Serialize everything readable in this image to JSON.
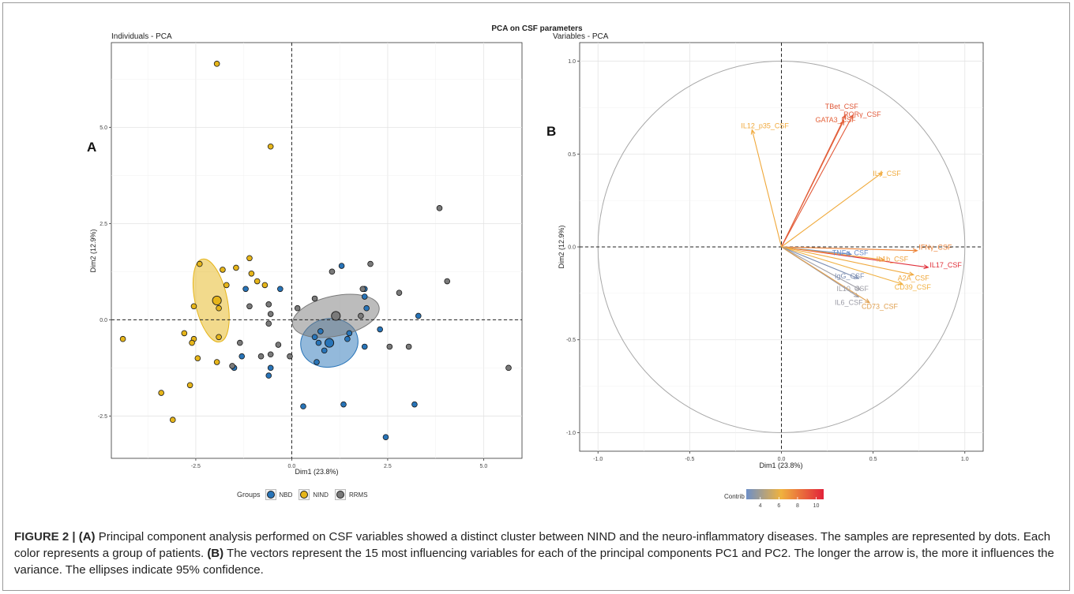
{
  "figure": {
    "suptitle": "PCA on CSF parameters",
    "panel_a_letter": "A",
    "panel_b_letter": "B",
    "caption": {
      "label": "FIGURE 2 |",
      "a_ref": "(A)",
      "text1": " Principal component analysis performed on CSF variables showed a distinct cluster between NIND and the neuro-inflammatory diseases. The samples are represented by dots. Each color represents a group of patients. ",
      "b_ref": "(B)",
      "text2": " The vectors represent the 15 most influencing variables for each of the principal components PC1 and PC2. The longer the arrow is, the more it influences the variance. The ellipses indicate 95% confidence."
    }
  },
  "chart_data": [
    {
      "type": "scatter",
      "title": "Individuals - PCA",
      "xlabel": "Dim1 (23.8%)",
      "ylabel": "Dim2 (12.9%)",
      "xlim": [
        -4.7,
        6.0
      ],
      "ylim": [
        -3.6,
        7.2
      ],
      "xticks": [
        -2.5,
        0.0,
        2.5,
        5.0
      ],
      "yticks": [
        -2.5,
        0.0,
        2.5,
        5.0
      ],
      "xtick_labels": [
        "-2.5",
        "0.0",
        "2.5",
        "5.0"
      ],
      "ytick_labels": [
        "-2.5",
        "0.0",
        "2.5",
        "5.0"
      ],
      "grid": true,
      "legend_title": "Groups",
      "legend_position": "bottom",
      "series": [
        {
          "name": "NBD",
          "color": "#2874b8",
          "points": [
            [
              -1.2,
              0.8
            ],
            [
              -1.5,
              -1.25
            ],
            [
              -1.3,
              -0.95
            ],
            [
              -0.6,
              -1.45
            ],
            [
              -0.55,
              -1.25
            ],
            [
              -0.3,
              0.8
            ],
            [
              0.75,
              -0.3
            ],
            [
              0.6,
              -0.45
            ],
            [
              0.7,
              -0.6
            ],
            [
              1.3,
              1.4
            ],
            [
              0.65,
              -1.1
            ],
            [
              0.85,
              -0.8
            ],
            [
              1.45,
              -0.5
            ],
            [
              1.5,
              -0.35
            ],
            [
              1.9,
              0.8
            ],
            [
              1.9,
              0.6
            ],
            [
              1.95,
              0.3
            ],
            [
              2.3,
              -0.25
            ],
            [
              1.9,
              -0.7
            ],
            [
              3.3,
              0.1
            ],
            [
              0.3,
              -2.25
            ],
            [
              1.35,
              -2.2
            ],
            [
              2.45,
              -3.05
            ],
            [
              3.2,
              -2.2
            ]
          ],
          "centroid": [
            0.98,
            -0.6
          ],
          "ellipse": {
            "cx": 0.98,
            "cy": -0.6,
            "rx": 0.75,
            "ry": 0.63,
            "angle": 10
          }
        },
        {
          "name": "NIND",
          "color": "#e6b51a",
          "points": [
            [
              -1.95,
              6.65
            ],
            [
              -0.55,
              4.5
            ],
            [
              -1.1,
              1.6
            ],
            [
              -1.45,
              1.35
            ],
            [
              -2.4,
              1.45
            ],
            [
              -1.8,
              1.3
            ],
            [
              -1.05,
              1.2
            ],
            [
              -0.9,
              1.0
            ],
            [
              -0.7,
              0.9
            ],
            [
              -1.7,
              0.9
            ],
            [
              -2.55,
              0.35
            ],
            [
              -1.9,
              0.3
            ],
            [
              -2.55,
              -0.5
            ],
            [
              -2.6,
              -0.6
            ],
            [
              -2.8,
              -0.35
            ],
            [
              -1.9,
              -0.45
            ],
            [
              -2.45,
              -1.0
            ],
            [
              -1.95,
              -1.1
            ],
            [
              -4.4,
              -0.5
            ],
            [
              -2.65,
              -1.7
            ],
            [
              -3.4,
              -1.9
            ],
            [
              -3.1,
              -2.6
            ]
          ],
          "centroid": [
            -1.95,
            0.5
          ],
          "ellipse": {
            "cx": -2.1,
            "cy": 0.5,
            "rx": 0.42,
            "ry": 1.1,
            "angle": 12
          }
        },
        {
          "name": "RRMS",
          "color": "#7a7a7a",
          "points": [
            [
              -1.1,
              0.35
            ],
            [
              -0.6,
              0.4
            ],
            [
              -0.55,
              0.15
            ],
            [
              -0.6,
              -0.1
            ],
            [
              -1.35,
              -0.6
            ],
            [
              -1.55,
              -1.2
            ],
            [
              -0.8,
              -0.95
            ],
            [
              -0.35,
              -0.65
            ],
            [
              -0.55,
              -0.9
            ],
            [
              -0.05,
              -0.95
            ],
            [
              0.6,
              0.55
            ],
            [
              1.05,
              1.25
            ],
            [
              1.85,
              0.8
            ],
            [
              2.05,
              1.45
            ],
            [
              2.8,
              0.7
            ],
            [
              1.8,
              0.1
            ],
            [
              2.55,
              -0.7
            ],
            [
              3.05,
              -0.7
            ],
            [
              3.85,
              2.9
            ],
            [
              4.05,
              1.0
            ],
            [
              5.65,
              -1.25
            ],
            [
              0.15,
              0.3
            ]
          ],
          "centroid": [
            1.15,
            0.1
          ],
          "ellipse": {
            "cx": 1.15,
            "cy": 0.1,
            "rx": 1.15,
            "ry": 0.52,
            "angle": 12
          }
        }
      ]
    },
    {
      "type": "scatter",
      "title": "Variables - PCA",
      "xlabel": "Dim1 (23.8%)",
      "ylabel": "Dim2 (12.9%)",
      "xlim": [
        -1.1,
        1.1
      ],
      "ylim": [
        -1.1,
        1.1
      ],
      "xticks": [
        -1.0,
        -0.5,
        0.0,
        0.5,
        1.0
      ],
      "yticks": [
        -1.0,
        -0.5,
        0.0,
        0.5,
        1.0
      ],
      "xtick_labels": [
        "-1.0",
        "-0.5",
        "0.0",
        "0.5",
        "1.0"
      ],
      "ytick_labels": [
        "-1.0",
        "-0.5",
        "0.0",
        "0.5",
        "1.0"
      ],
      "grid": true,
      "unit_circle": true,
      "legend_title": "Contrib",
      "legend_ticks": [
        "4",
        "6",
        "8",
        "10"
      ],
      "legend_position": "bottom",
      "vectors": [
        {
          "name": "TBet_CSF",
          "x": 0.35,
          "y": 0.71,
          "contrib": 9.5,
          "color": "#e05838"
        },
        {
          "name": "GATA3_CSF",
          "x": 0.34,
          "y": 0.68,
          "contrib": 9.0,
          "color": "#e4623a"
        },
        {
          "name": "RORγ_CSF",
          "x": 0.39,
          "y": 0.71,
          "contrib": 9.3,
          "color": "#e25a3a"
        },
        {
          "name": "IL12_p35_CSF",
          "x": -0.16,
          "y": 0.63,
          "contrib": 6.0,
          "color": "#f0a83a"
        },
        {
          "name": "IL4_CSF",
          "x": 0.55,
          "y": 0.4,
          "contrib": 6.4,
          "color": "#f0aa3c"
        },
        {
          "name": "IFNγ_CSF",
          "x": 0.74,
          "y": -0.02,
          "contrib": 8.0,
          "color": "#ec8034"
        },
        {
          "name": "IL17_CSF",
          "x": 0.8,
          "y": -0.11,
          "contrib": 10.5,
          "color": "#e0303a"
        },
        {
          "name": "TNFα_CSF",
          "x": 0.38,
          "y": -0.04,
          "contrib": 3.2,
          "color": "#6a8cc8"
        },
        {
          "name": "IL1b_CSF",
          "x": 0.56,
          "y": -0.07,
          "contrib": 5.5,
          "color": "#f0a23c"
        },
        {
          "name": "A2A_CSF",
          "x": 0.72,
          "y": -0.15,
          "contrib": 6.5,
          "color": "#f0a83c"
        },
        {
          "name": "CD39_CSF",
          "x": 0.66,
          "y": -0.2,
          "contrib": 6.2,
          "color": "#f0b040"
        },
        {
          "name": "IgG_CSF",
          "x": 0.42,
          "y": -0.17,
          "contrib": 3.2,
          "color": "#7a8cb0"
        },
        {
          "name": "IL10_CSF",
          "x": 0.43,
          "y": -0.23,
          "contrib": 3.8,
          "color": "#a0a0a8"
        },
        {
          "name": "IL6_CSF",
          "x": 0.42,
          "y": -0.27,
          "contrib": 4.0,
          "color": "#9a9aa4"
        },
        {
          "name": "CD73_CSF",
          "x": 0.48,
          "y": -0.3,
          "contrib": 6.2,
          "color": "#e0a050"
        }
      ]
    }
  ]
}
